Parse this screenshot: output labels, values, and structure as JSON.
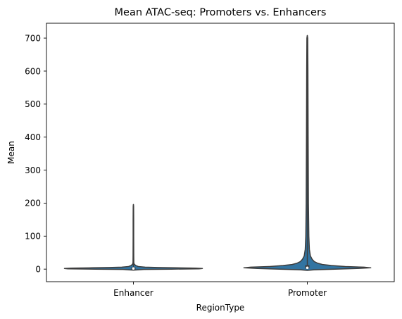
{
  "chart_data": {
    "type": "violin",
    "title": "Mean ATAC-seq: Promoters vs. Enhancers",
    "xlabel": "RegionType",
    "ylabel": "Mean",
    "categories": [
      "Enhancer",
      "Promoter"
    ],
    "y_ticks": [
      0,
      100,
      200,
      300,
      400,
      500,
      600,
      700
    ],
    "ylim": [
      -38,
      745
    ],
    "grid": false,
    "fill_color": "#3274a1",
    "edge_color": "#3d3d3d",
    "violins": [
      {
        "category": "Enhancer",
        "min": 0,
        "max": 196,
        "q1": 1,
        "median": 2,
        "q3": 3,
        "profile": [
          [
            -3,
            0
          ],
          [
            -1,
            0.15
          ],
          [
            0,
            0.55
          ],
          [
            1,
            0.95
          ],
          [
            2,
            1.0
          ],
          [
            3,
            0.9
          ],
          [
            4,
            0.6
          ],
          [
            5,
            0.35
          ],
          [
            6,
            0.17
          ],
          [
            8,
            0.07
          ],
          [
            11,
            0.035
          ],
          [
            15,
            0.012
          ],
          [
            20,
            0.006
          ],
          [
            40,
            0.005
          ],
          [
            100,
            0.004
          ],
          [
            150,
            0.004
          ],
          [
            190,
            0.003
          ],
          [
            196,
            0
          ]
        ]
      },
      {
        "category": "Promoter",
        "min": 0,
        "max": 708,
        "q1": 2,
        "median": 4,
        "q3": 10,
        "profile": [
          [
            -4,
            0
          ],
          [
            -2,
            0.1
          ],
          [
            0,
            0.4
          ],
          [
            2,
            0.72
          ],
          [
            4,
            0.92
          ],
          [
            6,
            0.82
          ],
          [
            8,
            0.55
          ],
          [
            11,
            0.35
          ],
          [
            14,
            0.22
          ],
          [
            18,
            0.15
          ],
          [
            23,
            0.1
          ],
          [
            30,
            0.07
          ],
          [
            40,
            0.045
          ],
          [
            60,
            0.03
          ],
          [
            100,
            0.022
          ],
          [
            200,
            0.016
          ],
          [
            400,
            0.012
          ],
          [
            600,
            0.009
          ],
          [
            700,
            0.006
          ],
          [
            708,
            0
          ]
        ]
      }
    ]
  }
}
